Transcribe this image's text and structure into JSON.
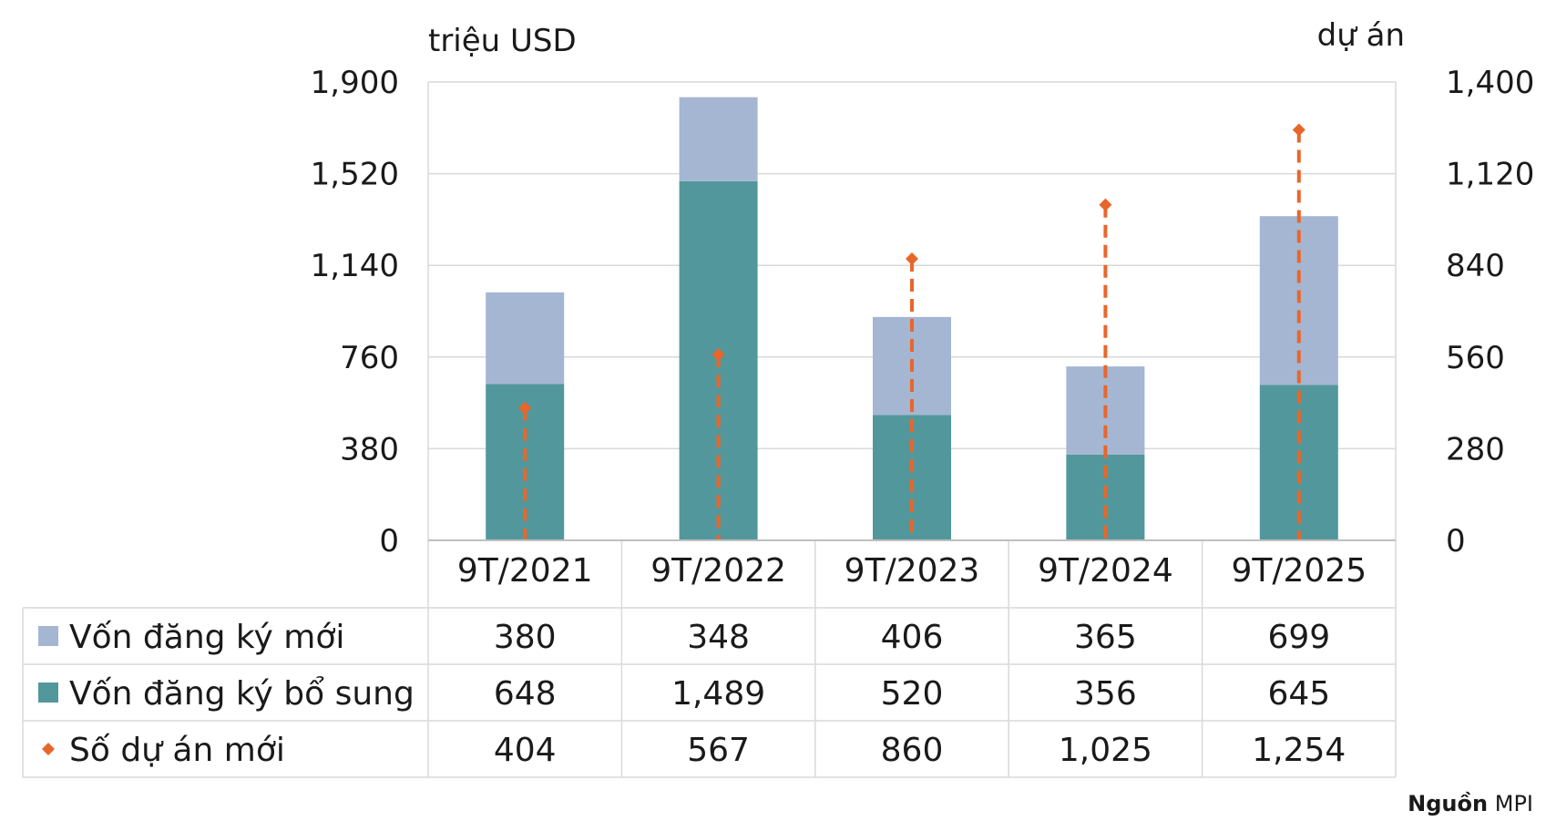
{
  "chart_data": {
    "type": "bar",
    "stacked": true,
    "categories": [
      "9T/2021",
      "9T/2022",
      "9T/2023",
      "9T/2024",
      "9T/2025"
    ],
    "series": [
      {
        "name": "Vốn đăng ký bổ sung",
        "kind": "bar",
        "axis": "left",
        "color": "#52979b",
        "values": [
          648,
          1489,
          520,
          356,
          645
        ],
        "labels": [
          "648",
          "1,489",
          "520",
          "356",
          "645"
        ]
      },
      {
        "name": "Vốn đăng ký mới",
        "kind": "bar",
        "axis": "left",
        "color": "#a5b6d3",
        "values": [
          380,
          348,
          406,
          365,
          699
        ],
        "labels": [
          "380",
          "348",
          "406",
          "365",
          "699"
        ]
      },
      {
        "name": "Số dự án mới",
        "kind": "point-dropline",
        "axis": "right",
        "color": "#e8662a",
        "values": [
          404,
          567,
          860,
          1025,
          1254
        ],
        "labels": [
          "404",
          "567",
          "860",
          "1,025",
          "1,254"
        ]
      }
    ],
    "table_row_order": [
      1,
      0,
      2
    ],
    "ylabel_left": "triệu USD",
    "ylabel_right": "dự án",
    "ylim_left": [
      0,
      1900
    ],
    "ylim_right": [
      0,
      1400
    ],
    "yticks_left": [
      "0",
      "380",
      "760",
      "1,140",
      "1,520",
      "1,900"
    ],
    "yticks_right": [
      "0",
      "280",
      "560",
      "840",
      "1,120",
      "1,400"
    ],
    "grid": true,
    "legend": "data-table"
  },
  "source": {
    "prefix": "Nguồn",
    "name": "MPI"
  }
}
